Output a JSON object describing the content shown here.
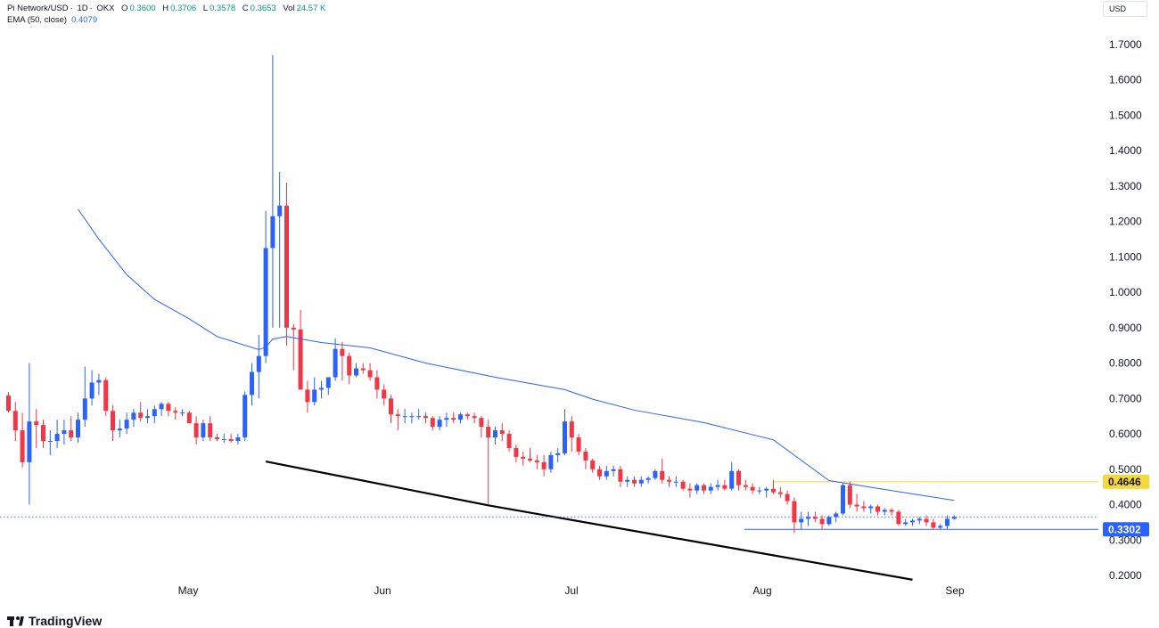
{
  "header": {
    "symbol": "Pi Network/USD",
    "interval": "1D",
    "exchange": "OKX",
    "open_label": "O",
    "open": "0.3600",
    "high_label": "H",
    "high": "0.3706",
    "low_label": "L",
    "low": "0.3578",
    "close_label": "C",
    "close": "0.3653",
    "vol_label": "Vol",
    "vol": "24.57 K",
    "ema_label": "EMA (50, close)",
    "ema_value": "0.4079"
  },
  "currency": "USD",
  "branding": "TradingView",
  "colors": {
    "up": "#2962ff",
    "down": "#f23645",
    "ema": "#2962ff",
    "trendline": "#000000",
    "resistance": "#f7d83a",
    "support": "#2962ff",
    "last_price": "#2962ff",
    "header_value": "#089981"
  },
  "chart_data": {
    "type": "candlestick",
    "y_ticks": [
      "0.2000",
      "0.3000",
      "0.4000",
      "0.5000",
      "0.6000",
      "0.7000",
      "0.8000",
      "0.9000",
      "1.0000",
      "1.1000",
      "1.2000",
      "1.3000",
      "1.4000",
      "1.5000",
      "1.6000",
      "1.7000"
    ],
    "ylim": [
      0.16,
      1.76
    ],
    "x_ticks": [
      "May",
      "Jun",
      "Jul",
      "Aug",
      "Sep"
    ],
    "first_date": "2025-04-01",
    "last_date": "2025-08-27",
    "candles": [
      [
        0.708,
        0.718,
        0.66,
        0.665
      ],
      [
        0.665,
        0.69,
        0.58,
        0.61
      ],
      [
        0.61,
        0.66,
        0.505,
        0.52
      ],
      [
        0.52,
        0.8,
        0.4,
        0.635
      ],
      [
        0.635,
        0.67,
        0.56,
        0.625
      ],
      [
        0.625,
        0.64,
        0.56,
        0.58
      ],
      [
        0.58,
        0.61,
        0.54,
        0.58
      ],
      [
        0.58,
        0.64,
        0.56,
        0.6
      ],
      [
        0.6,
        0.64,
        0.57,
        0.61
      ],
      [
        0.61,
        0.65,
        0.58,
        0.59
      ],
      [
        0.59,
        0.66,
        0.575,
        0.64
      ],
      [
        0.64,
        0.79,
        0.62,
        0.7
      ],
      [
        0.7,
        0.78,
        0.68,
        0.745
      ],
      [
        0.745,
        0.77,
        0.71,
        0.752
      ],
      [
        0.752,
        0.76,
        0.65,
        0.665
      ],
      [
        0.665,
        0.68,
        0.58,
        0.61
      ],
      [
        0.61,
        0.64,
        0.59,
        0.615
      ],
      [
        0.615,
        0.66,
        0.6,
        0.64
      ],
      [
        0.64,
        0.67,
        0.62,
        0.66
      ],
      [
        0.66,
        0.69,
        0.635,
        0.645
      ],
      [
        0.645,
        0.67,
        0.63,
        0.65
      ],
      [
        0.65,
        0.68,
        0.63,
        0.67
      ],
      [
        0.67,
        0.69,
        0.65,
        0.685
      ],
      [
        0.685,
        0.69,
        0.65,
        0.665
      ],
      [
        0.665,
        0.675,
        0.64,
        0.66
      ],
      [
        0.66,
        0.67,
        0.65,
        0.66
      ],
      [
        0.66,
        0.665,
        0.63,
        0.63
      ],
      [
        0.63,
        0.65,
        0.57,
        0.59
      ],
      [
        0.59,
        0.64,
        0.58,
        0.63
      ],
      [
        0.63,
        0.65,
        0.58,
        0.59
      ],
      [
        0.59,
        0.6,
        0.58,
        0.585
      ],
      [
        0.585,
        0.6,
        0.575,
        0.585
      ],
      [
        0.585,
        0.6,
        0.575,
        0.58
      ],
      [
        0.58,
        0.6,
        0.57,
        0.59
      ],
      [
        0.59,
        0.72,
        0.58,
        0.71
      ],
      [
        0.71,
        0.8,
        0.68,
        0.775
      ],
      [
        0.775,
        0.88,
        0.7,
        0.82
      ],
      [
        0.82,
        1.23,
        0.8,
        1.125
      ],
      [
        1.125,
        1.67,
        0.9,
        1.215
      ],
      [
        1.215,
        1.34,
        0.9,
        1.245
      ],
      [
        1.245,
        1.31,
        0.85,
        0.9
      ],
      [
        0.9,
        0.91,
        0.78,
        0.895
      ],
      [
        0.895,
        0.95,
        0.74,
        0.725
      ],
      [
        0.725,
        0.75,
        0.66,
        0.69
      ],
      [
        0.69,
        0.76,
        0.68,
        0.725
      ],
      [
        0.725,
        0.75,
        0.7,
        0.73
      ],
      [
        0.73,
        0.76,
        0.71,
        0.76
      ],
      [
        0.76,
        0.87,
        0.75,
        0.84
      ],
      [
        0.84,
        0.86,
        0.75,
        0.82
      ],
      [
        0.82,
        0.83,
        0.74,
        0.765
      ],
      [
        0.765,
        0.8,
        0.76,
        0.785
      ],
      [
        0.785,
        0.8,
        0.77,
        0.78
      ],
      [
        0.78,
        0.8,
        0.75,
        0.76
      ],
      [
        0.76,
        0.78,
        0.7,
        0.725
      ],
      [
        0.725,
        0.74,
        0.68,
        0.7
      ],
      [
        0.7,
        0.71,
        0.63,
        0.655
      ],
      [
        0.655,
        0.67,
        0.61,
        0.65
      ],
      [
        0.65,
        0.67,
        0.63,
        0.65
      ],
      [
        0.65,
        0.66,
        0.63,
        0.65
      ],
      [
        0.65,
        0.67,
        0.64,
        0.65
      ],
      [
        0.65,
        0.66,
        0.63,
        0.645
      ],
      [
        0.645,
        0.65,
        0.61,
        0.62
      ],
      [
        0.62,
        0.65,
        0.61,
        0.64
      ],
      [
        0.64,
        0.66,
        0.62,
        0.645
      ],
      [
        0.645,
        0.66,
        0.63,
        0.64
      ],
      [
        0.64,
        0.66,
        0.63,
        0.655
      ],
      [
        0.655,
        0.66,
        0.64,
        0.65
      ],
      [
        0.65,
        0.66,
        0.63,
        0.645
      ],
      [
        0.645,
        0.65,
        0.59,
        0.62
      ],
      [
        0.62,
        0.64,
        0.4,
        0.59
      ],
      [
        0.59,
        0.62,
        0.57,
        0.61
      ],
      [
        0.61,
        0.63,
        0.58,
        0.6
      ],
      [
        0.6,
        0.61,
        0.55,
        0.56
      ],
      [
        0.56,
        0.57,
        0.52,
        0.535
      ],
      [
        0.535,
        0.55,
        0.51,
        0.53
      ],
      [
        0.53,
        0.56,
        0.52,
        0.525
      ],
      [
        0.525,
        0.54,
        0.5,
        0.52
      ],
      [
        0.52,
        0.54,
        0.48,
        0.5
      ],
      [
        0.5,
        0.55,
        0.49,
        0.54
      ],
      [
        0.54,
        0.56,
        0.52,
        0.545
      ],
      [
        0.545,
        0.67,
        0.54,
        0.635
      ],
      [
        0.635,
        0.65,
        0.55,
        0.59
      ],
      [
        0.59,
        0.6,
        0.54,
        0.55
      ],
      [
        0.55,
        0.56,
        0.5,
        0.525
      ],
      [
        0.525,
        0.53,
        0.49,
        0.5
      ],
      [
        0.5,
        0.51,
        0.47,
        0.48
      ],
      [
        0.48,
        0.51,
        0.47,
        0.495
      ],
      [
        0.495,
        0.51,
        0.48,
        0.5
      ],
      [
        0.5,
        0.51,
        0.45,
        0.465
      ],
      [
        0.465,
        0.48,
        0.45,
        0.47
      ],
      [
        0.47,
        0.48,
        0.45,
        0.46
      ],
      [
        0.46,
        0.48,
        0.45,
        0.47
      ],
      [
        0.47,
        0.48,
        0.46,
        0.475
      ],
      [
        0.475,
        0.5,
        0.47,
        0.495
      ],
      [
        0.495,
        0.53,
        0.46,
        0.47
      ],
      [
        0.47,
        0.48,
        0.45,
        0.465
      ],
      [
        0.465,
        0.48,
        0.45,
        0.465
      ],
      [
        0.465,
        0.47,
        0.44,
        0.445
      ],
      [
        0.445,
        0.46,
        0.42,
        0.44
      ],
      [
        0.44,
        0.46,
        0.43,
        0.455
      ],
      [
        0.455,
        0.46,
        0.43,
        0.44
      ],
      [
        0.44,
        0.46,
        0.43,
        0.45
      ],
      [
        0.45,
        0.47,
        0.44,
        0.455
      ],
      [
        0.455,
        0.47,
        0.44,
        0.445
      ],
      [
        0.445,
        0.52,
        0.44,
        0.495
      ],
      [
        0.495,
        0.5,
        0.44,
        0.455
      ],
      [
        0.455,
        0.47,
        0.44,
        0.45
      ],
      [
        0.45,
        0.46,
        0.43,
        0.44
      ],
      [
        0.44,
        0.45,
        0.43,
        0.44
      ],
      [
        0.44,
        0.45,
        0.42,
        0.445
      ],
      [
        0.445,
        0.47,
        0.43,
        0.435
      ],
      [
        0.435,
        0.45,
        0.42,
        0.43
      ],
      [
        0.43,
        0.44,
        0.4,
        0.41
      ],
      [
        0.41,
        0.42,
        0.32,
        0.35
      ],
      [
        0.35,
        0.38,
        0.33,
        0.36
      ],
      [
        0.36,
        0.38,
        0.34,
        0.365
      ],
      [
        0.365,
        0.38,
        0.35,
        0.36
      ],
      [
        0.36,
        0.37,
        0.33,
        0.345
      ],
      [
        0.345,
        0.37,
        0.34,
        0.365
      ],
      [
        0.365,
        0.38,
        0.35,
        0.375
      ],
      [
        0.375,
        0.46,
        0.37,
        0.455
      ],
      [
        0.455,
        0.465,
        0.39,
        0.4
      ],
      [
        0.4,
        0.43,
        0.38,
        0.395
      ],
      [
        0.395,
        0.41,
        0.38,
        0.39
      ],
      [
        0.39,
        0.4,
        0.375,
        0.395
      ],
      [
        0.395,
        0.4,
        0.37,
        0.38
      ],
      [
        0.38,
        0.39,
        0.37,
        0.385
      ],
      [
        0.385,
        0.39,
        0.37,
        0.38
      ],
      [
        0.38,
        0.385,
        0.34,
        0.345
      ],
      [
        0.345,
        0.36,
        0.34,
        0.35
      ],
      [
        0.35,
        0.36,
        0.34,
        0.355
      ],
      [
        0.355,
        0.365,
        0.345,
        0.36
      ],
      [
        0.36,
        0.37,
        0.34,
        0.35
      ],
      [
        0.35,
        0.36,
        0.33,
        0.335
      ],
      [
        0.335,
        0.345,
        0.33,
        0.34
      ],
      [
        0.34,
        0.37,
        0.33,
        0.36
      ],
      [
        0.36,
        0.3706,
        0.3578,
        0.3653
      ]
    ],
    "ema": [
      [
        10,
        1.235
      ],
      [
        13,
        1.15
      ],
      [
        17,
        1.05
      ],
      [
        21,
        0.98
      ],
      [
        26,
        0.925
      ],
      [
        30,
        0.875
      ],
      [
        36,
        0.838
      ],
      [
        37,
        0.845
      ],
      [
        38,
        0.868
      ],
      [
        40,
        0.875
      ],
      [
        45,
        0.858
      ],
      [
        52,
        0.843
      ],
      [
        60,
        0.8
      ],
      [
        70,
        0.76
      ],
      [
        80,
        0.725
      ],
      [
        84,
        0.698
      ],
      [
        90,
        0.667
      ],
      [
        100,
        0.632
      ],
      [
        110,
        0.583
      ],
      [
        118,
        0.468
      ],
      [
        125,
        0.446
      ],
      [
        136,
        0.412
      ]
    ],
    "trendline": [
      [
        37,
        0.522
      ],
      [
        69,
        0.398
      ],
      [
        130,
        0.188
      ]
    ],
    "resistance_value": 0.4646,
    "resistance_label": "0.4646",
    "support_value": 0.3302,
    "support_label": "0.3302",
    "last_close": 0.3653
  }
}
